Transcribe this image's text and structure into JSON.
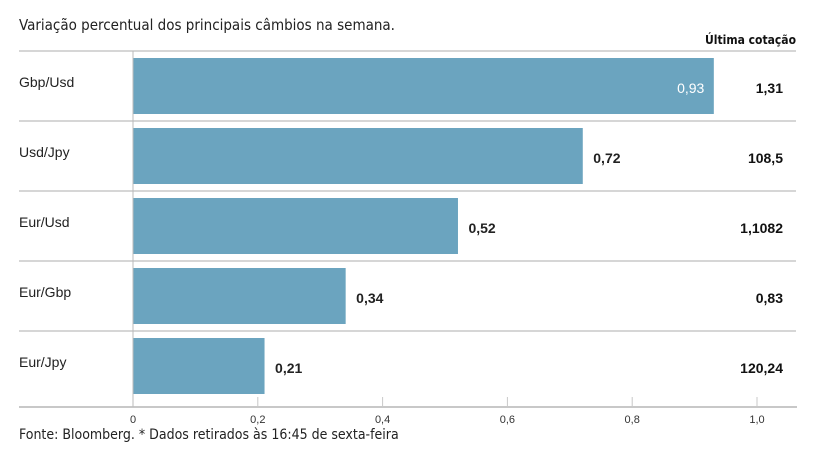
{
  "chart_data": {
    "type": "bar",
    "orientation": "horizontal",
    "title": "Variação percentual dos principais câmbios na semana.",
    "categories": [
      "Gbp/Usd",
      "Usd/Jpy",
      "Eur/Usd",
      "Eur/Gbp",
      "Eur/Jpy"
    ],
    "values": [
      0.93,
      0.72,
      0.52,
      0.34,
      0.21
    ],
    "value_labels": [
      "0,93",
      "0,72",
      "0,52",
      "0,34",
      "0,21"
    ],
    "extra_column": {
      "header": "Última cotação",
      "values": [
        "1,31",
        "108,5",
        "1,1082",
        "0,83",
        "120,24"
      ]
    },
    "xlim": [
      0,
      1.0
    ],
    "xticks": [
      0,
      0.2,
      0.4,
      0.6,
      0.8,
      1.0
    ],
    "xtick_labels": [
      "0",
      "0,2",
      "0,4",
      "0,6",
      "0,8",
      "1,0"
    ],
    "grid": false,
    "bar_color": "#6ba4bf",
    "footer": "Fonte: Bloomberg.  * Dados retirados às 16:45 de sexta-feira"
  }
}
